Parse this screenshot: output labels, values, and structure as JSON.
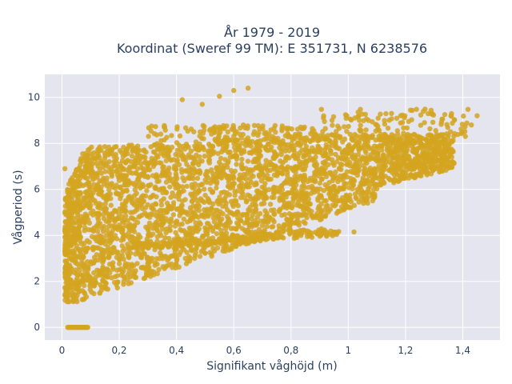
{
  "chart_data": {
    "type": "scatter",
    "title_lines": [
      "År 1979 - 2019",
      "Koordinat (Sweref 99 TM): E 351731, N 6238576"
    ],
    "xlabel": "Signifikant våghöjd (m)",
    "ylabel": "Vågperiod (s)",
    "xlim": [
      -0.06,
      1.53
    ],
    "ylim": [
      -0.55,
      11.0
    ],
    "x_ticks": [
      0,
      0.2,
      0.4,
      0.6,
      0.8,
      1.0,
      1.2,
      1.4
    ],
    "x_tick_labels": [
      "0",
      "0,2",
      "0,4",
      "0,6",
      "0,8",
      "1",
      "1,2",
      "1,4"
    ],
    "y_ticks": [
      0,
      2,
      4,
      6,
      8,
      10
    ],
    "y_tick_labels": [
      "0",
      "2",
      "4",
      "6",
      "8",
      "10"
    ],
    "grid": true,
    "marker_color": "#D4A420",
    "background": "#E5E5EF",
    "series": [
      {
        "regions": [
          {
            "x": [
              0.02,
              0.09
            ],
            "y": [
              0,
              0
            ]
          },
          {
            "x": [
              0.01,
              0.1
            ],
            "y": [
              1.2,
              7.2
            ]
          },
          {
            "x": [
              0.05,
              0.25
            ],
            "y": [
              1.3,
              7.7
            ]
          },
          {
            "x": [
              0.15,
              0.45
            ],
            "y": [
              1.8,
              8.0
            ]
          },
          {
            "x": [
              0.35,
              0.65
            ],
            "y": [
              2.4,
              8.1
            ]
          },
          {
            "x": [
              0.55,
              0.9
            ],
            "y": [
              3.0,
              8.2
            ]
          },
          {
            "x": [
              0.8,
              1.1
            ],
            "y": [
              4.2,
              8.3
            ]
          },
          {
            "x": [
              1.05,
              1.35
            ],
            "y": [
              6.0,
              8.5
            ]
          },
          {
            "x": [
              0.25,
              0.95
            ],
            "y": [
              3.4,
              4.2
            ]
          },
          {
            "x": [
              0.3,
              1.4
            ],
            "y": [
              8.1,
              9.6
            ]
          }
        ],
        "outliers": [
          [
            0.65,
            10.4
          ],
          [
            0.6,
            10.3
          ],
          [
            0.42,
            9.9
          ],
          [
            0.49,
            9.7
          ],
          [
            1.45,
            9.2
          ],
          [
            1.43,
            8.8
          ],
          [
            1.02,
            4.15
          ],
          [
            0.01,
            6.9
          ],
          [
            0.55,
            10.05
          ]
        ]
      }
    ]
  }
}
